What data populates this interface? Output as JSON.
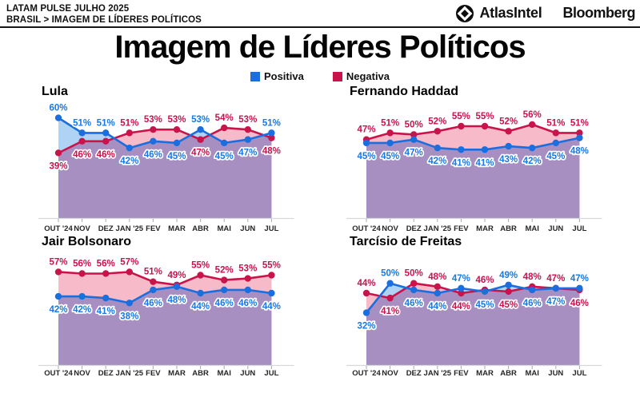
{
  "header": {
    "kicker": "LATAM PULSE JULHO 2025",
    "breadcrumb": "BRASIL > IMAGEM DE LÍDERES POLÍTICOS",
    "brand_atlas": "AtlasIntel",
    "brand_bloomberg": "Bloomberg"
  },
  "title": "Imagem de Líderes Políticos",
  "legend": {
    "positive": "Positiva",
    "negative": "Negativa"
  },
  "colors": {
    "positive_line": "#1a6ede",
    "negative_line": "#c9134b",
    "positive_label": "#1878e4",
    "negative_label": "#c6134e",
    "positive_fill": "#aed3f5",
    "negative_fill": "#f6bac9",
    "overlap_fill": "#a78fc2",
    "axis_line": "#d8d8d8",
    "tick": "#aaaaaa",
    "month_label": "#262626"
  },
  "chart_data": [
    {
      "type": "line",
      "title": "Lula",
      "categories": [
        "OUT '24",
        "NOV",
        "DEZ",
        "JAN '25",
        "FEV",
        "MAR",
        "ABR",
        "MAI",
        "JUN",
        "JUL"
      ],
      "series": [
        {
          "name": "Positiva",
          "values": [
            60,
            51,
            51,
            42,
            46,
            45,
            53,
            45,
            47,
            51
          ]
        },
        {
          "name": "Negativa",
          "values": [
            39,
            46,
            46,
            51,
            53,
            53,
            47,
            54,
            53,
            48
          ]
        }
      ],
      "unit": "%",
      "ylim": [
        0,
        66
      ],
      "legend_position": "top-center",
      "grid": false
    },
    {
      "type": "line",
      "title": "Fernando Haddad",
      "categories": [
        "OUT '24",
        "NOV",
        "DEZ",
        "JAN '25",
        "FEV",
        "MAR",
        "ABR",
        "MAI",
        "JUN",
        "JUL"
      ],
      "series": [
        {
          "name": "Positiva",
          "values": [
            45,
            45,
            47,
            42,
            41,
            41,
            43,
            42,
            45,
            48
          ]
        },
        {
          "name": "Negativa",
          "values": [
            47,
            51,
            50,
            52,
            55,
            55,
            52,
            56,
            51,
            51
          ]
        }
      ],
      "unit": "%",
      "ylim": [
        0,
        66
      ],
      "legend_position": "top-center",
      "grid": false
    },
    {
      "type": "line",
      "title": "Jair Bolsonaro",
      "categories": [
        "OUT '24",
        "NOV",
        "DEZ",
        "JAN '25",
        "FEV",
        "MAR",
        "ABR",
        "MAI",
        "JUN",
        "JUL"
      ],
      "series": [
        {
          "name": "Positiva",
          "values": [
            42,
            42,
            41,
            38,
            46,
            48,
            44,
            46,
            46,
            44
          ]
        },
        {
          "name": "Negativa",
          "values": [
            57,
            56,
            56,
            57,
            51,
            49,
            55,
            52,
            53,
            55
          ]
        }
      ],
      "unit": "%",
      "ylim": [
        0,
        66
      ],
      "legend_position": "top-center",
      "grid": false
    },
    {
      "type": "line",
      "title": "Tarcísio de Freitas",
      "categories": [
        "OUT '24",
        "NOV",
        "DEZ",
        "JAN '25",
        "FEV",
        "MAR",
        "ABR",
        "MAI",
        "JUN",
        "JUL"
      ],
      "series": [
        {
          "name": "Positiva",
          "values": [
            32,
            50,
            46,
            44,
            47,
            45,
            49,
            46,
            47,
            47
          ]
        },
        {
          "name": "Negativa",
          "values": [
            44,
            41,
            50,
            48,
            44,
            46,
            45,
            48,
            47,
            46
          ]
        }
      ],
      "unit": "%",
      "ylim": [
        0,
        66
      ],
      "legend_position": "top-center",
      "grid": false
    }
  ]
}
